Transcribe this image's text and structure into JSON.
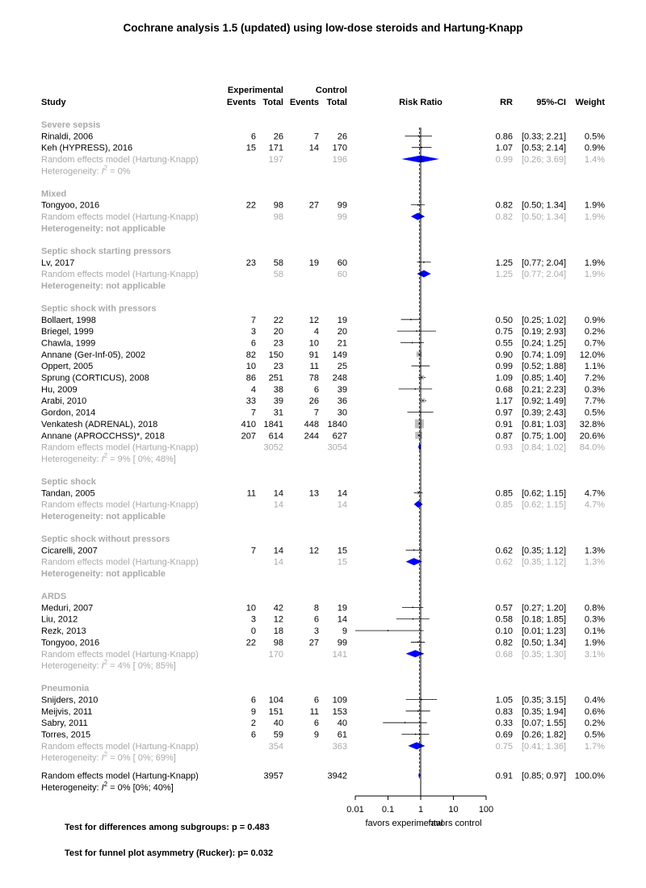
{
  "chart_data": {
    "type": "forest",
    "title": "Cochrane analysis 1.5 (updated) using low-dose steroids and Hartung-Knapp",
    "columns": {
      "experimental": "Experimental",
      "control": "Control",
      "study": "Study",
      "events": "Events",
      "total": "Total",
      "risk_ratio": "Risk Ratio",
      "rr": "RR",
      "ci": "95%-CI",
      "weight": "Weight"
    },
    "x_axis": {
      "scale": "log",
      "ticks": [
        "0.01",
        "0.1",
        "1",
        "10",
        "100"
      ],
      "tick_values": [
        0.01,
        0.1,
        1,
        10,
        100
      ],
      "range": [
        0.01,
        100
      ],
      "reference": 1,
      "label_left": "favors experimental",
      "label_right": "favors control",
      "overall_line": 0.91
    },
    "subgroups": [
      {
        "name": "Severe sepsis",
        "studies": [
          {
            "study": "Rinaldi, 2006",
            "e_events": "6",
            "e_total": "26",
            "c_events": "7",
            "c_total": "26",
            "rr_text": "0.86",
            "ci_text": "[0.33; 2.21]",
            "weight": "0.5%",
            "rr": 0.86,
            "lo": 0.33,
            "hi": 2.21,
            "w": 0.5
          },
          {
            "study": "Keh (HYPRESS), 2016",
            "e_events": "15",
            "e_total": "171",
            "c_events": "14",
            "c_total": "170",
            "rr_text": "1.07",
            "ci_text": "[0.53; 2.14]",
            "weight": "0.9%",
            "rr": 1.07,
            "lo": 0.53,
            "hi": 2.14,
            "w": 0.9
          }
        ],
        "pooled": {
          "label": "Random effects model  (Hartung-Knapp)",
          "e_total": "197",
          "c_total": "196",
          "rr_text": "0.99",
          "ci_text": "[0.26; 3.69]",
          "weight": "1.4%",
          "rr": 0.99,
          "lo": 0.26,
          "hi": 3.69
        },
        "heterogeneity": {
          "prefix": "Heterogeneity: ",
          "i2": "I",
          "suffix": " = 0%",
          "bold": false
        }
      },
      {
        "name": "Mixed",
        "studies": [
          {
            "study": "Tongyoo, 2016",
            "e_events": "22",
            "e_total": "98",
            "c_events": "27",
            "c_total": "99",
            "rr_text": "0.82",
            "ci_text": "[0.50; 1.34]",
            "weight": "1.9%",
            "rr": 0.82,
            "lo": 0.5,
            "hi": 1.34,
            "w": 1.9
          }
        ],
        "pooled": {
          "label": "Random effects model  (Hartung-Knapp)",
          "e_total": "98",
          "c_total": "99",
          "rr_text": "0.82",
          "ci_text": "[0.50; 1.34]",
          "weight": "1.9%",
          "rr": 0.82,
          "lo": 0.5,
          "hi": 1.34
        },
        "heterogeneity": {
          "text": "Heterogeneity: not applicable",
          "bold": true
        }
      },
      {
        "name": "Septic shock starting pressors",
        "studies": [
          {
            "study": "Lv, 2017",
            "e_events": "23",
            "e_total": "58",
            "c_events": "19",
            "c_total": "60",
            "rr_text": "1.25",
            "ci_text": "[0.77; 2.04]",
            "weight": "1.9%",
            "rr": 1.25,
            "lo": 0.77,
            "hi": 2.04,
            "w": 1.9
          }
        ],
        "pooled": {
          "label": "Random effects model  (Hartung-Knapp)",
          "e_total": "58",
          "c_total": "60",
          "rr_text": "1.25",
          "ci_text": "[0.77; 2.04]",
          "weight": "1.9%",
          "rr": 1.25,
          "lo": 0.77,
          "hi": 2.04
        },
        "heterogeneity": {
          "text": "Heterogeneity: not applicable",
          "bold": true
        }
      },
      {
        "name": "Septic shock with pressors",
        "studies": [
          {
            "study": "Bollaert, 1998",
            "e_events": "7",
            "e_total": "22",
            "c_events": "12",
            "c_total": "19",
            "rr_text": "0.50",
            "ci_text": "[0.25; 1.02]",
            "weight": "0.9%",
            "rr": 0.5,
            "lo": 0.25,
            "hi": 1.02,
            "w": 0.9
          },
          {
            "study": "Briegel, 1999",
            "e_events": "3",
            "e_total": "20",
            "c_events": "4",
            "c_total": "20",
            "rr_text": "0.75",
            "ci_text": "[0.19; 2.93]",
            "weight": "0.2%",
            "rr": 0.75,
            "lo": 0.19,
            "hi": 2.93,
            "w": 0.2
          },
          {
            "study": "Chawla, 1999",
            "e_events": "6",
            "e_total": "23",
            "c_events": "10",
            "c_total": "21",
            "rr_text": "0.55",
            "ci_text": "[0.24; 1.25]",
            "weight": "0.7%",
            "rr": 0.55,
            "lo": 0.24,
            "hi": 1.25,
            "w": 0.7
          },
          {
            "study": "Annane (Ger-Inf-05), 2002",
            "e_events": "82",
            "e_total": "150",
            "c_events": "91",
            "c_total": "149",
            "rr_text": "0.90",
            "ci_text": "[0.74; 1.09]",
            "weight": "12.0%",
            "rr": 0.9,
            "lo": 0.74,
            "hi": 1.09,
            "w": 12.0
          },
          {
            "study": "Oppert, 2005",
            "e_events": "10",
            "e_total": "23",
            "c_events": "11",
            "c_total": "25",
            "rr_text": "0.99",
            "ci_text": "[0.52; 1.88]",
            "weight": "1.1%",
            "rr": 0.99,
            "lo": 0.52,
            "hi": 1.88,
            "w": 1.1
          },
          {
            "study": "Sprung (CORTICUS), 2008",
            "e_events": "86",
            "e_total": "251",
            "c_events": "78",
            "c_total": "248",
            "rr_text": "1.09",
            "ci_text": "[0.85; 1.40]",
            "weight": "7.2%",
            "rr": 1.09,
            "lo": 0.85,
            "hi": 1.4,
            "w": 7.2
          },
          {
            "study": "Hu, 2009",
            "e_events": "4",
            "e_total": "38",
            "c_events": "6",
            "c_total": "39",
            "rr_text": "0.68",
            "ci_text": "[0.21; 2.23]",
            "weight": "0.3%",
            "rr": 0.68,
            "lo": 0.21,
            "hi": 2.23,
            "w": 0.3
          },
          {
            "study": "Arabi, 2010",
            "e_events": "33",
            "e_total": "39",
            "c_events": "26",
            "c_total": "36",
            "rr_text": "1.17",
            "ci_text": "[0.92; 1.49]",
            "weight": "7.7%",
            "rr": 1.17,
            "lo": 0.92,
            "hi": 1.49,
            "w": 7.7
          },
          {
            "study": "Gordon, 2014",
            "e_events": "7",
            "e_total": "31",
            "c_events": "7",
            "c_total": "30",
            "rr_text": "0.97",
            "ci_text": "[0.39; 2.43]",
            "weight": "0.5%",
            "rr": 0.97,
            "lo": 0.39,
            "hi": 2.43,
            "w": 0.5
          },
          {
            "study": "Venkatesh (ADRENAL), 2018",
            "e_events": "410",
            "e_total": "1841",
            "c_events": "448",
            "c_total": "1840",
            "rr_text": "0.91",
            "ci_text": "[0.81; 1.03]",
            "weight": "32.8%",
            "rr": 0.91,
            "lo": 0.81,
            "hi": 1.03,
            "w": 32.8
          },
          {
            "study": "Annane (APROCCHSS)*, 2018",
            "e_events": "207",
            "e_total": "614",
            "c_events": "244",
            "c_total": "627",
            "rr_text": "0.87",
            "ci_text": "[0.75; 1.00]",
            "weight": "20.6%",
            "rr": 0.87,
            "lo": 0.75,
            "hi": 1.0,
            "w": 20.6
          }
        ],
        "pooled": {
          "label": "Random effects model  (Hartung-Knapp)",
          "e_total": "3052",
          "c_total": "3054",
          "rr_text": "0.93",
          "ci_text": "[0.84; 1.02]",
          "weight": "84.0%",
          "rr": 0.93,
          "lo": 0.84,
          "hi": 1.02
        },
        "heterogeneity": {
          "prefix": "Heterogeneity: ",
          "i2": "I",
          "suffix": " = 9% [ 0%; 48%]",
          "bold": false
        }
      },
      {
        "name": "Septic shock",
        "studies": [
          {
            "study": "Tandan, 2005",
            "e_events": "11",
            "e_total": "14",
            "c_events": "13",
            "c_total": "14",
            "rr_text": "0.85",
            "ci_text": "[0.62; 1.15]",
            "weight": "4.7%",
            "rr": 0.85,
            "lo": 0.62,
            "hi": 1.15,
            "w": 4.7
          }
        ],
        "pooled": {
          "label": "Random effects model  (Hartung-Knapp)",
          "e_total": "14",
          "c_total": "14",
          "rr_text": "0.85",
          "ci_text": "[0.62; 1.15]",
          "weight": "4.7%",
          "rr": 0.85,
          "lo": 0.62,
          "hi": 1.15
        },
        "heterogeneity": {
          "text": "Heterogeneity: not applicable",
          "bold": true
        }
      },
      {
        "name": "Septic shock without pressors",
        "studies": [
          {
            "study": "Cicarelli, 2007",
            "e_events": "7",
            "e_total": "14",
            "c_events": "12",
            "c_total": "15",
            "rr_text": "0.62",
            "ci_text": "[0.35; 1.12]",
            "weight": "1.3%",
            "rr": 0.62,
            "lo": 0.35,
            "hi": 1.12,
            "w": 1.3
          }
        ],
        "pooled": {
          "label": "Random effects model  (Hartung-Knapp)",
          "e_total": "14",
          "c_total": "15",
          "rr_text": "0.62",
          "ci_text": "[0.35; 1.12]",
          "weight": "1.3%",
          "rr": 0.62,
          "lo": 0.35,
          "hi": 1.12
        },
        "heterogeneity": {
          "text": "Heterogeneity: not applicable",
          "bold": true
        }
      },
      {
        "name": "ARDS",
        "studies": [
          {
            "study": "Meduri, 2007",
            "e_events": "10",
            "e_total": "42",
            "c_events": "8",
            "c_total": "19",
            "rr_text": "0.57",
            "ci_text": "[0.27; 1.20]",
            "weight": "0.8%",
            "rr": 0.57,
            "lo": 0.27,
            "hi": 1.2,
            "w": 0.8
          },
          {
            "study": "Liu, 2012",
            "e_events": "3",
            "e_total": "12",
            "c_events": "6",
            "c_total": "14",
            "rr_text": "0.58",
            "ci_text": "[0.18; 1.85]",
            "weight": "0.3%",
            "rr": 0.58,
            "lo": 0.18,
            "hi": 1.85,
            "w": 0.3
          },
          {
            "study": "Rezk, 2013",
            "e_events": "0",
            "e_total": "18",
            "c_events": "3",
            "c_total": "9",
            "rr_text": "0.10",
            "ci_text": "[0.01; 1.23]",
            "weight": "0.1%",
            "rr": 0.1,
            "lo": 0.01,
            "hi": 1.23,
            "w": 0.1
          },
          {
            "study": "Tongyoo, 2016",
            "e_events": "22",
            "e_total": "98",
            "c_events": "27",
            "c_total": "99",
            "rr_text": "0.82",
            "ci_text": "[0.50; 1.34]",
            "weight": "1.9%",
            "rr": 0.82,
            "lo": 0.5,
            "hi": 1.34,
            "w": 1.9
          }
        ],
        "pooled": {
          "label": "Random effects model  (Hartung-Knapp)",
          "e_total": "170",
          "c_total": "141",
          "rr_text": "0.68",
          "ci_text": "[0.35; 1.30]",
          "weight": "3.1%",
          "rr": 0.68,
          "lo": 0.35,
          "hi": 1.3
        },
        "heterogeneity": {
          "prefix": "Heterogeneity: ",
          "i2": "I",
          "suffix": " = 4% [ 0%; 85%]",
          "bold": false
        }
      },
      {
        "name": "Pneumonia",
        "studies": [
          {
            "study": "Snijders, 2010",
            "e_events": "6",
            "e_total": "104",
            "c_events": "6",
            "c_total": "109",
            "rr_text": "1.05",
            "ci_text": "[0.35; 3.15]",
            "weight": "0.4%",
            "rr": 1.05,
            "lo": 0.35,
            "hi": 3.15,
            "w": 0.4
          },
          {
            "study": "Meijvis, 2011",
            "e_events": "9",
            "e_total": "151",
            "c_events": "11",
            "c_total": "153",
            "rr_text": "0.83",
            "ci_text": "[0.35; 1.94]",
            "weight": "0.6%",
            "rr": 0.83,
            "lo": 0.35,
            "hi": 1.94,
            "w": 0.6
          },
          {
            "study": "Sabry, 2011",
            "e_events": "2",
            "e_total": "40",
            "c_events": "6",
            "c_total": "40",
            "rr_text": "0.33",
            "ci_text": "[0.07; 1.55]",
            "weight": "0.2%",
            "rr": 0.33,
            "lo": 0.07,
            "hi": 1.55,
            "w": 0.2
          },
          {
            "study": "Torres, 2015",
            "e_events": "6",
            "e_total": "59",
            "c_events": "9",
            "c_total": "61",
            "rr_text": "0.69",
            "ci_text": "[0.26; 1.82]",
            "weight": "0.5%",
            "rr": 0.69,
            "lo": 0.26,
            "hi": 1.82,
            "w": 0.5
          }
        ],
        "pooled": {
          "label": "Random effects model  (Hartung-Knapp)",
          "e_total": "354",
          "c_total": "363",
          "rr_text": "0.75",
          "ci_text": "[0.41; 1.36]",
          "weight": "1.7%",
          "rr": 0.75,
          "lo": 0.41,
          "hi": 1.36
        },
        "heterogeneity": {
          "prefix": "Heterogeneity: ",
          "i2": "I",
          "suffix": " = 0% [ 0%; 69%]",
          "bold": false
        }
      }
    ],
    "overall": {
      "label": "Random effects model  (Hartung-Knapp)",
      "e_total": "3957",
      "c_total": "3942",
      "rr_text": "0.91",
      "ci_text": "[0.85; 0.97]",
      "weight": "100.0%",
      "rr": 0.91,
      "lo": 0.85,
      "hi": 0.97,
      "heterogeneity": {
        "prefix": "Heterogeneity: ",
        "i2": "I",
        "suffix": " = 0% [0%; 40%]",
        "bold": false
      }
    },
    "tests": {
      "subgroups": "Test for differences among subgroups: p = 0.483",
      "funnel": "Test for funnel plot asymmetry (Rucker): p= 0.032"
    },
    "colors": {
      "text": "#000000",
      "grey_text": "#a9a9a9",
      "diamond": "#0000ff",
      "square": "#bebebe",
      "ci_line": "#000000"
    }
  }
}
